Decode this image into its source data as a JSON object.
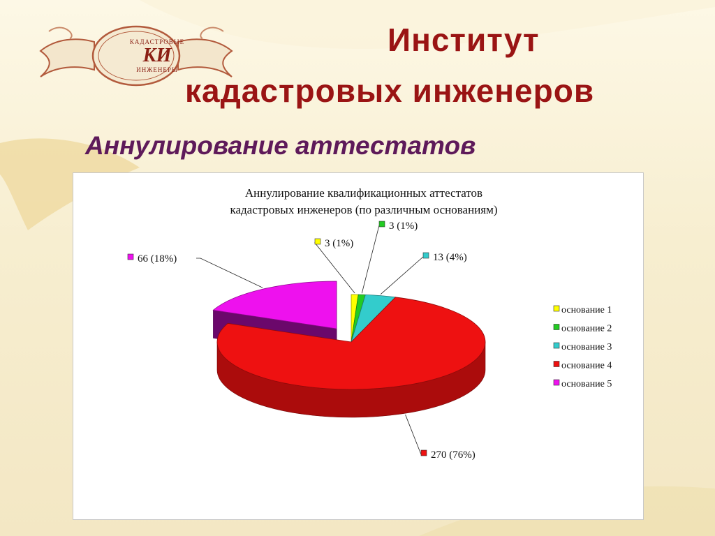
{
  "header": {
    "logo_top": "КАДАСТРОВЫЕ",
    "logo_mono": "КИ",
    "logo_bottom": "ИНЖЕНЕРЫ",
    "title_line1": "Институт",
    "title_line2": "кадастровых инженеров",
    "subtitle": "Аннулирование аттестатов"
  },
  "colors": {
    "title": "#9a1414",
    "subtitle": "#5e1a5a"
  },
  "chart_data": {
    "type": "pie",
    "title_line1": "Аннулирование квалификационных аттестатов",
    "title_line2": "кадастровых инженеров (по различным основаниям)",
    "legend_position": "right",
    "slices": [
      {
        "name": "основание 1",
        "value": 3,
        "percent": 1,
        "label": "3 (1%)",
        "color": "#ffff00"
      },
      {
        "name": "основание 2",
        "value": 3,
        "percent": 1,
        "label": "3 (1%)",
        "color": "#22cc22"
      },
      {
        "name": "основание 3",
        "value": 13,
        "percent": 4,
        "label": "13 (4%)",
        "color": "#33cccc"
      },
      {
        "name": "основание 4",
        "value": 270,
        "percent": 76,
        "label": "270 (76%)",
        "color": "#ee1111"
      },
      {
        "name": "основание 5",
        "value": 66,
        "percent": 18,
        "label": "66 (18%)",
        "color": "#ee11ee"
      }
    ]
  }
}
